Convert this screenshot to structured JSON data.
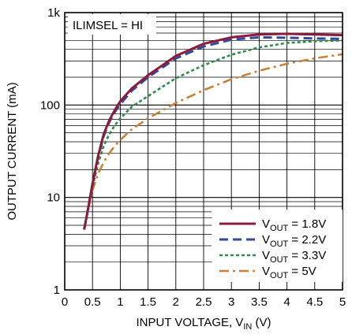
{
  "chart_data": {
    "type": "line",
    "xlabel": "INPUT VOLTAGE, V",
    "xlabel_sub": "IN",
    "xlabel_unit": " (V)",
    "ylabel": "OUTPUT CURRENT (mA)",
    "xlim": [
      0,
      5
    ],
    "ylim": [
      1,
      1000
    ],
    "yscale": "log",
    "grid": true,
    "legend_position": "bottom-right",
    "x_ticks": [
      "0",
      "0.5",
      "1",
      "1.5",
      "2",
      "2.5",
      "3",
      "3.5",
      "4",
      "4.5",
      "5"
    ],
    "y_ticks": [
      "1",
      "10",
      "100",
      "1k"
    ],
    "annotation": "ILIMSEL = HI",
    "series": [
      {
        "name": "V_OUT = 1.8V",
        "label_main": "V",
        "label_sub": "OUT",
        "label_rest": " = 1.8V",
        "color": "#8B1B3D",
        "dash": "solid",
        "x": [
          0.35,
          0.4,
          0.5,
          0.6,
          0.7,
          0.8,
          0.9,
          1.0,
          1.2,
          1.5,
          1.8,
          2.0,
          2.5,
          3.0,
          3.5,
          4.0,
          4.5,
          5.0
        ],
        "y": [
          4.5,
          6.5,
          14,
          28,
          48,
          68,
          88,
          110,
          150,
          210,
          280,
          340,
          460,
          540,
          580,
          590,
          580,
          570
        ]
      },
      {
        "name": "V_OUT = 2.2V",
        "label_main": "V",
        "label_sub": "OUT",
        "label_rest": " = 2.2V",
        "color": "#2E4A9E",
        "dash": "dash",
        "x": [
          0.35,
          0.4,
          0.5,
          0.6,
          0.7,
          0.8,
          0.9,
          1.0,
          1.2,
          1.5,
          1.8,
          2.0,
          2.5,
          3.0,
          3.5,
          4.0,
          4.5,
          5.0
        ],
        "y": [
          4.5,
          6.5,
          14,
          27,
          46,
          65,
          84,
          102,
          142,
          200,
          265,
          320,
          430,
          510,
          540,
          535,
          525,
          520
        ]
      },
      {
        "name": "V_OUT = 3.3V",
        "label_main": "V",
        "label_sub": "OUT",
        "label_rest": " = 3.3V",
        "color": "#2E8B4A",
        "dash": "dot",
        "x": [
          0.35,
          0.4,
          0.5,
          0.6,
          0.7,
          0.8,
          0.9,
          1.0,
          1.2,
          1.5,
          2.0,
          2.5,
          3.0,
          3.5,
          4.0,
          4.5,
          5.0
        ],
        "y": [
          4.5,
          6.5,
          13,
          23,
          36,
          48,
          60,
          72,
          95,
          125,
          195,
          270,
          350,
          420,
          470,
          490,
          500
        ]
      },
      {
        "name": "V_OUT = 5V",
        "label_main": "V",
        "label_sub": "OUT",
        "label_rest": " = 5V",
        "color": "#C8813A",
        "dash": "dashdot",
        "x": [
          0.35,
          0.4,
          0.5,
          0.6,
          0.7,
          0.8,
          0.9,
          1.0,
          1.2,
          1.5,
          2.0,
          2.5,
          3.0,
          3.5,
          4.0,
          4.5,
          5.0
        ],
        "y": [
          4.5,
          6.5,
          12,
          18,
          24,
          30,
          36,
          42,
          54,
          72,
          105,
          145,
          190,
          235,
          280,
          320,
          355
        ]
      }
    ]
  }
}
